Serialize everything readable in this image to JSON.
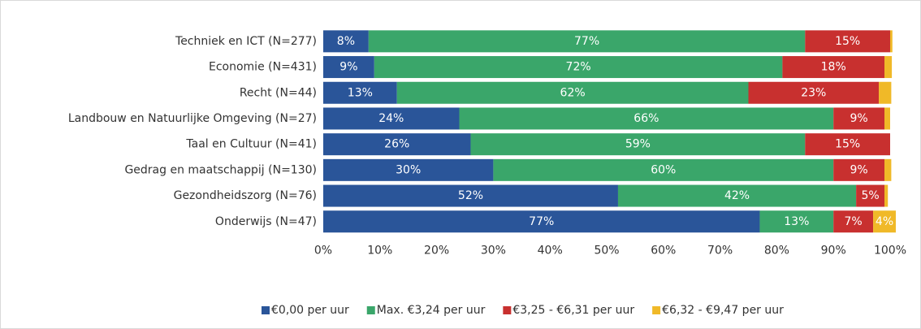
{
  "chart_data": {
    "type": "stacked-bar-horizontal",
    "categories": [
      "Techniek en ICT (N=277)",
      "Economie (N=431)",
      "Recht (N=44)",
      "Landbouw en Natuurlijke Omgeving (N=27)",
      "Taal en Cultuur (N=41)",
      "Gedrag en maatschappij (N=130)",
      "Gezondheidszorg (N=76)",
      "Onderwijs (N=47)"
    ],
    "series": [
      {
        "name": "€0,00 per uur",
        "color": "#2a5599",
        "values": [
          8,
          9,
          13,
          24,
          26,
          30,
          52,
          77
        ],
        "value_labels": [
          "8%",
          "9%",
          "13%",
          "24%",
          "26%",
          "30%",
          "52%",
          "77%"
        ]
      },
      {
        "name": "Max. €3,24 per uur",
        "color": "#3aa66a",
        "values": [
          77,
          72,
          62,
          66,
          59,
          60,
          42,
          13
        ],
        "value_labels": [
          "77%",
          "72%",
          "62%",
          "66%",
          "59%",
          "60%",
          "42%",
          "13%"
        ]
      },
      {
        "name": "€3,25 - €6,31 per uur",
        "color": "#c8302f",
        "values": [
          15,
          18,
          23,
          9,
          15,
          9,
          5,
          7
        ],
        "value_labels": [
          "15%",
          "18%",
          "23%",
          "9%",
          "15%",
          "9%",
          "5%",
          "7%"
        ]
      },
      {
        "name": "€6,32 - €9,47 per uur",
        "color": "#f0b928",
        "values": [
          0.4,
          1.3,
          2.2,
          1,
          0,
          1.2,
          0.6,
          4
        ],
        "value_labels": [
          null,
          null,
          null,
          null,
          null,
          null,
          null,
          "4%"
        ]
      }
    ],
    "xlim": [
      0,
      100
    ],
    "xticks": [
      {
        "value": 0,
        "label": "0%"
      },
      {
        "value": 10,
        "label": "10%"
      },
      {
        "value": 20,
        "label": "20%"
      },
      {
        "value": 30,
        "label": "30%"
      },
      {
        "value": 40,
        "label": "40%"
      },
      {
        "value": 50,
        "label": "50%"
      },
      {
        "value": 60,
        "label": "60%"
      },
      {
        "value": 70,
        "label": "70%"
      },
      {
        "value": 80,
        "label": "80%"
      },
      {
        "value": 90,
        "label": "90%"
      },
      {
        "value": 100,
        "label": "100%"
      }
    ],
    "legend": "bottom"
  }
}
